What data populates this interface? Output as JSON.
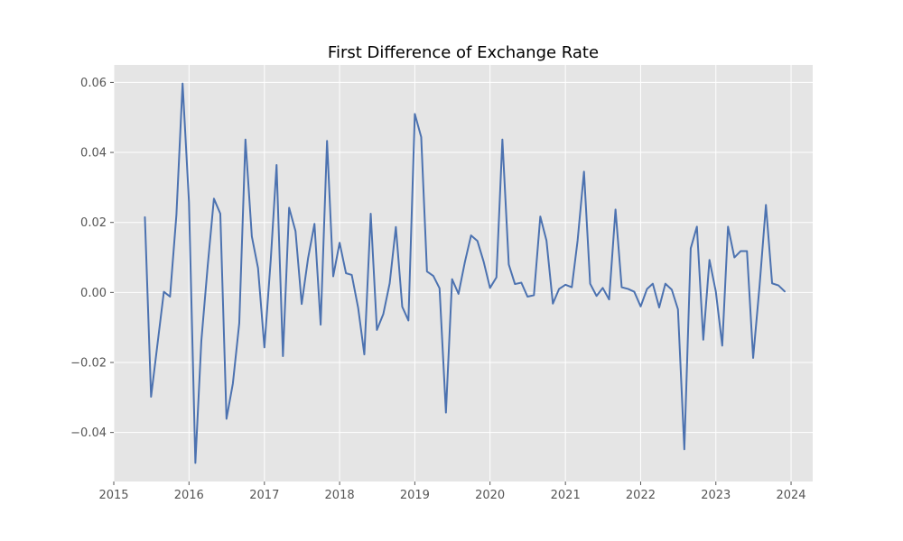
{
  "chart_data": {
    "type": "line",
    "title": "First Difference of Exchange Rate",
    "xlabel": "",
    "ylabel": "",
    "grid": true,
    "colors": {
      "background": "#e5e5e5",
      "grid": "#ffffff",
      "line": "#4c72b0",
      "tick_text": "#555555"
    },
    "xlim": [
      "2015-01-01",
      "2024-04-15"
    ],
    "ylim": [
      -0.054,
      0.065
    ],
    "x_ticks": [
      "2015",
      "2016",
      "2017",
      "2018",
      "2019",
      "2020",
      "2021",
      "2022",
      "2023",
      "2024"
    ],
    "y_ticks": [
      "−0.04",
      "−0.02",
      "0.00",
      "0.02",
      "0.04",
      "0.06"
    ],
    "y_tick_values": [
      -0.04,
      -0.02,
      0.0,
      0.02,
      0.04,
      0.06
    ],
    "x": [
      "2015-06",
      "2015-07",
      "2015-08",
      "2015-09",
      "2015-10",
      "2015-11",
      "2015-12",
      "2016-01",
      "2016-02",
      "2016-03",
      "2016-04",
      "2016-05",
      "2016-06",
      "2016-07",
      "2016-08",
      "2016-09",
      "2016-10",
      "2016-11",
      "2016-12",
      "2017-01",
      "2017-02",
      "2017-03",
      "2017-04",
      "2017-05",
      "2017-06",
      "2017-07",
      "2017-08",
      "2017-09",
      "2017-10",
      "2017-11",
      "2017-12",
      "2018-01",
      "2018-02",
      "2018-03",
      "2018-04",
      "2018-05",
      "2018-06",
      "2018-07",
      "2018-08",
      "2018-09",
      "2018-10",
      "2018-11",
      "2018-12",
      "2019-01",
      "2019-02",
      "2019-03",
      "2019-04",
      "2019-05",
      "2019-06",
      "2019-07",
      "2019-08",
      "2019-09",
      "2019-10",
      "2019-11",
      "2019-12",
      "2020-01",
      "2020-02",
      "2020-03",
      "2020-04",
      "2020-05",
      "2020-06",
      "2020-07",
      "2020-08",
      "2020-09",
      "2020-10",
      "2020-11",
      "2020-12",
      "2021-01",
      "2021-02",
      "2021-03",
      "2021-04",
      "2021-05",
      "2021-06",
      "2021-07",
      "2021-08",
      "2021-09",
      "2021-10",
      "2021-11",
      "2021-12",
      "2022-01",
      "2022-02",
      "2022-03",
      "2022-04",
      "2022-05",
      "2022-06",
      "2022-07",
      "2022-08",
      "2022-09",
      "2022-10",
      "2022-11",
      "2022-12",
      "2023-01",
      "2023-02",
      "2023-03",
      "2023-04",
      "2023-05",
      "2023-06",
      "2023-07",
      "2023-08",
      "2023-09",
      "2023-10",
      "2023-11",
      "2023-12"
    ],
    "series": [
      {
        "values": [
          0.0215,
          -0.0298,
          -0.0148,
          0.0002,
          -0.0012,
          0.0222,
          0.0597,
          0.0258,
          -0.0487,
          -0.0138,
          0.0077,
          0.0268,
          0.0225,
          -0.0361,
          -0.026,
          -0.0088,
          0.0437,
          0.016,
          0.007,
          -0.0157,
          0.0095,
          0.0364,
          -0.0182,
          0.0242,
          0.0175,
          -0.0033,
          0.0098,
          0.0196,
          -0.0092,
          0.0433,
          0.0046,
          0.0142,
          0.0055,
          0.005,
          -0.0044,
          -0.0177,
          0.0225,
          -0.0107,
          -0.0062,
          0.0026,
          0.0187,
          -0.0041,
          -0.008,
          0.051,
          0.0444,
          0.006,
          0.0047,
          0.0012,
          -0.0343,
          0.0038,
          -0.0004,
          0.0087,
          0.0163,
          0.0147,
          0.0088,
          0.0013,
          0.0043,
          0.0437,
          0.008,
          0.0024,
          0.0028,
          -0.0012,
          -0.0008,
          0.0217,
          0.0148,
          -0.0032,
          0.001,
          0.0022,
          0.0015,
          0.0148,
          0.0345,
          0.0025,
          -0.001,
          0.0013,
          -0.002,
          0.0237,
          0.0015,
          0.001,
          0.0002,
          -0.004,
          0.001,
          0.0025,
          -0.0043,
          0.0025,
          0.0008,
          -0.0048,
          -0.0448,
          0.0126,
          0.0188,
          -0.0135,
          0.0093,
          0.0002,
          -0.0152,
          0.0188,
          0.01,
          0.0118,
          0.0118,
          -0.0187,
          0.0018,
          0.025,
          0.0026,
          0.002,
          0.0003
        ]
      }
    ]
  }
}
